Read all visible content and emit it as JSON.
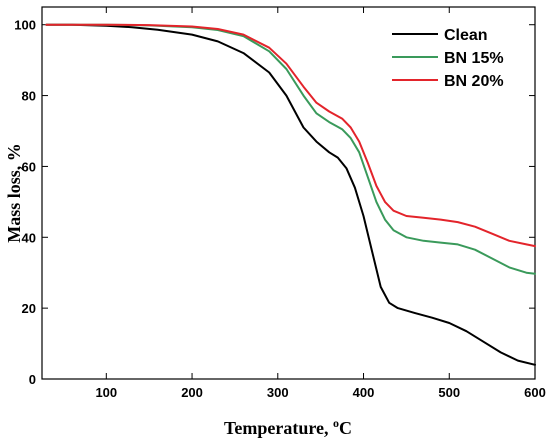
{
  "chart_data": {
    "type": "line",
    "title": "",
    "xlabel": "Temperature, ",
    "xlabel_sup": "o",
    "xlabel_suffix": "C",
    "ylabel": "Mass loss, %",
    "xlim": [
      25,
      600
    ],
    "ylim": [
      0,
      105
    ],
    "xticks": [
      100,
      200,
      300,
      400,
      500,
      600
    ],
    "yticks": [
      0,
      20,
      40,
      60,
      80,
      100
    ],
    "grid": false,
    "legend_position": "top-right",
    "series": [
      {
        "name": "Clean",
        "color": "#000000",
        "x": [
          30,
          60,
          100,
          130,
          160,
          200,
          230,
          260,
          290,
          310,
          330,
          345,
          360,
          370,
          380,
          390,
          400,
          410,
          420,
          430,
          440,
          460,
          480,
          500,
          520,
          540,
          560,
          580,
          600
        ],
        "y": [
          100,
          100,
          99.7,
          99.3,
          98.6,
          97.2,
          95.3,
          92,
          86.5,
          80,
          71,
          67,
          64,
          62.5,
          59.5,
          54,
          46,
          36,
          26,
          21.5,
          20,
          18.6,
          17.3,
          15.8,
          13.5,
          10.5,
          7.5,
          5.2,
          4
        ]
      },
      {
        "name": "BN 15%",
        "color": "#3a9a5b",
        "x": [
          30,
          60,
          100,
          150,
          200,
          230,
          260,
          290,
          310,
          330,
          345,
          360,
          375,
          385,
          395,
          405,
          415,
          425,
          435,
          450,
          470,
          490,
          510,
          530,
          550,
          570,
          590,
          600
        ],
        "y": [
          100,
          100,
          100,
          99.8,
          99.3,
          98.5,
          96.8,
          92.5,
          87.5,
          80,
          75,
          72.5,
          70.5,
          68,
          64,
          57,
          50,
          45,
          42,
          40,
          39,
          38.5,
          38,
          36.5,
          34,
          31.5,
          30,
          29.7
        ]
      },
      {
        "name": "BN 20%",
        "color": "#e3242b",
        "x": [
          30,
          60,
          100,
          150,
          200,
          230,
          260,
          290,
          310,
          330,
          345,
          360,
          375,
          385,
          395,
          405,
          415,
          425,
          435,
          450,
          470,
          490,
          510,
          530,
          550,
          570,
          590,
          600
        ],
        "y": [
          100,
          100,
          100,
          99.9,
          99.5,
          98.8,
          97.2,
          93.5,
          89,
          82.5,
          78,
          75.5,
          73.5,
          71,
          67,
          61,
          54.5,
          50,
          47.5,
          46,
          45.5,
          45,
          44.3,
          43,
          41,
          39,
          38,
          37.5
        ]
      }
    ]
  }
}
